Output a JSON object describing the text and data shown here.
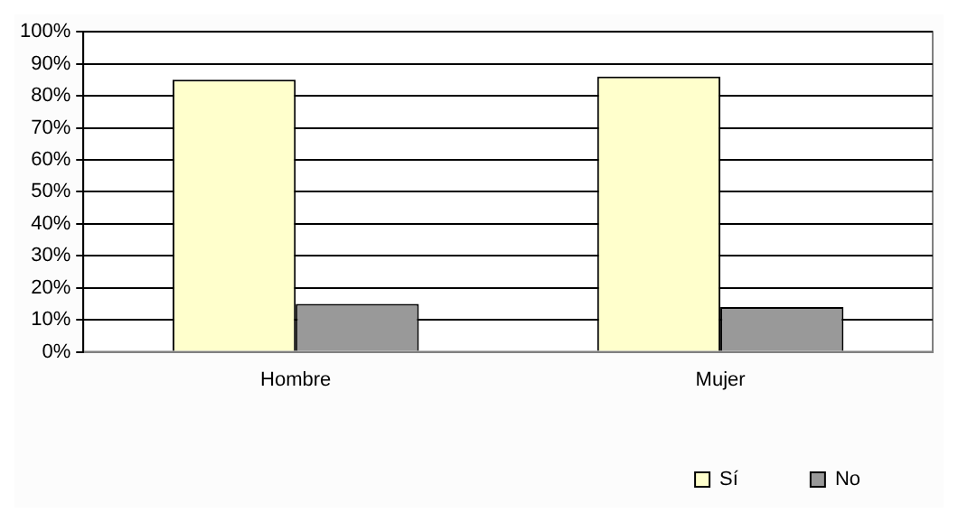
{
  "chart_data": {
    "type": "bar",
    "categories": [
      "Hombre",
      "Mujer"
    ],
    "series": [
      {
        "name": "Sí",
        "color": "#ffffcc",
        "values": [
          85,
          86
        ]
      },
      {
        "name": "No",
        "color": "#999999",
        "values": [
          15,
          14
        ]
      }
    ],
    "ylim": [
      0,
      100
    ],
    "yticks": [
      {
        "value": 0,
        "label": "0%"
      },
      {
        "value": 10,
        "label": "10%"
      },
      {
        "value": 20,
        "label": "20%"
      },
      {
        "value": 30,
        "label": "30%"
      },
      {
        "value": 40,
        "label": "40%"
      },
      {
        "value": 50,
        "label": "50%"
      },
      {
        "value": 60,
        "label": "60%"
      },
      {
        "value": 70,
        "label": "70%"
      },
      {
        "value": 80,
        "label": "80%"
      },
      {
        "value": 90,
        "label": "90%"
      },
      {
        "value": 100,
        "label": "100%"
      }
    ],
    "grid": "y",
    "legend": "bottom right"
  }
}
